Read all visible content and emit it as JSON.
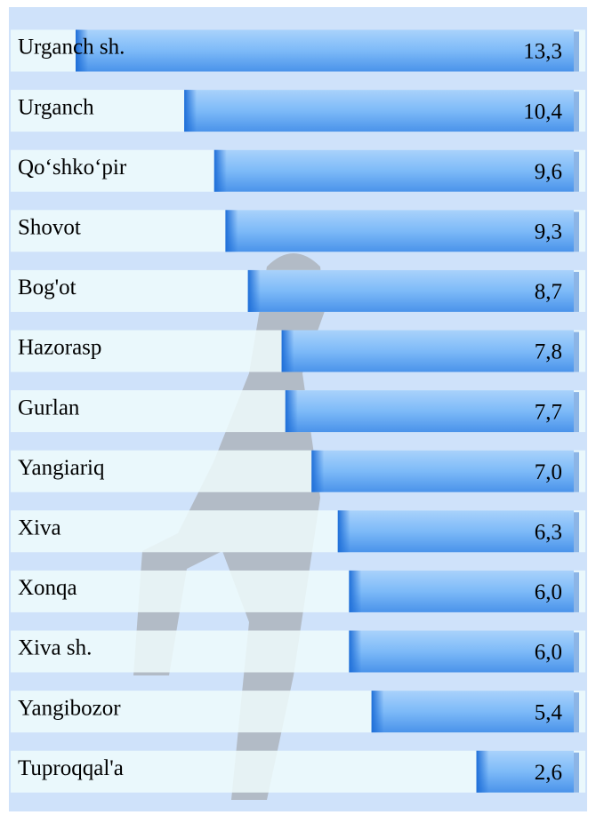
{
  "chart_data": {
    "type": "bar",
    "orientation": "horizontal",
    "categories": [
      "Urganch sh.",
      "Urganch",
      "Qo‘shko‘pir",
      "Shovot",
      "Bog'ot",
      "Hazorasp",
      "Gurlan",
      "Yangiariq",
      "Xiva",
      "Xonqa",
      "Xiva sh.",
      "Yangibozor",
      "Tuproqqal'a"
    ],
    "values": [
      13.3,
      10.4,
      9.6,
      9.3,
      8.7,
      7.8,
      7.7,
      7.0,
      6.3,
      6.0,
      6.0,
      5.4,
      2.6
    ],
    "value_labels": [
      "13,3",
      "10,4",
      "9,6",
      "9,3",
      "8,7",
      "7,8",
      "7,7",
      "7,0",
      "6,3",
      "6,0",
      "6,0",
      "5,4",
      "2,6"
    ],
    "color": "#5aa6f5"
  }
}
